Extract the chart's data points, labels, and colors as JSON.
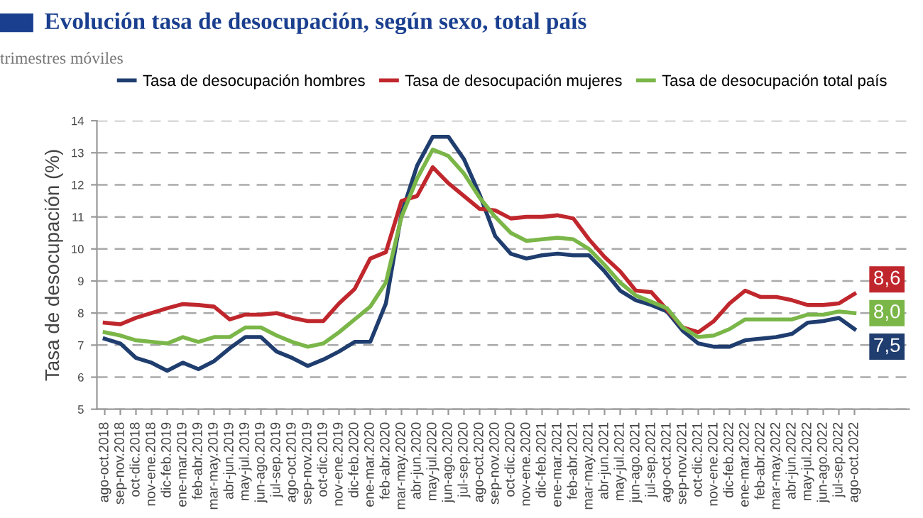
{
  "chart_data": {
    "type": "line",
    "title": "Evolución tasa de desocupación, según sexo, total país",
    "subtitle": "trimestres móviles",
    "ylabel": "Tasa de desocupación (%)",
    "categories": [
      "ago-oct.2018",
      "sep-nov.2018",
      "oct-dic.2018",
      "nov-ene.2018",
      "dic-feb.2019",
      "ene-mar.2019",
      "feb-abr.2019",
      "mar-may.2019",
      "abr-jun.2019",
      "may-jul.2019",
      "jun-ago.2019",
      "jul-sep.2019",
      "ago-oct.2019",
      "sep-nov.2019",
      "oct-dic.2019",
      "nov-ene.2019",
      "dic-feb.2020",
      "ene-mar.2020",
      "feb-abr.2020",
      "mar-may.2020",
      "abr-jun.2020",
      "may-jul.2020",
      "jun-ago.2020",
      "jul-sep.2020",
      "ago-oct.2020",
      "sep-nov.2020",
      "oct-dic.2020",
      "nov-ene.2020",
      "dic-feb.2021",
      "ene-mar.2021",
      "feb-abr.2021",
      "mar-may.2021",
      "abr-jun.2021",
      "may-jul.2021",
      "jun-ago.2021",
      "jul-sep.2021",
      "ago-oct.2021",
      "sep-nov.2021",
      "oct-dic.2021",
      "nov-ene.2021",
      "dic-feb.2022",
      "ene-mar.2022",
      "feb-abr.2022",
      "mar-may.2022",
      "abr-jun.2022",
      "may-jul.2022",
      "jun-ago.2022",
      "jul-sep.2022",
      "ago-oct.2022"
    ],
    "series": [
      {
        "name": "Tasa de desocupación hombres",
        "color": "#1f3d6e",
        "values": [
          7.2,
          7.05,
          6.6,
          6.45,
          6.2,
          6.45,
          6.25,
          6.5,
          6.9,
          7.25,
          7.25,
          6.8,
          6.6,
          6.35,
          6.55,
          6.8,
          7.1,
          7.1,
          8.3,
          11.1,
          12.6,
          13.5,
          13.5,
          12.8,
          11.7,
          10.4,
          9.85,
          9.7,
          9.8,
          9.85,
          9.8,
          9.8,
          9.3,
          8.7,
          8.4,
          8.25,
          8.05,
          7.45,
          7.05,
          6.95,
          6.95,
          7.15,
          7.2,
          7.25,
          7.35,
          7.7,
          7.75,
          7.85,
          7.5
        ],
        "value_labels": [
          null,
          null,
          null,
          null,
          null,
          null,
          null,
          null,
          null,
          null,
          null,
          null,
          null,
          null,
          null,
          null,
          null,
          null,
          null,
          null,
          null,
          null,
          null,
          null,
          null,
          null,
          null,
          null,
          null,
          null,
          null,
          null,
          null,
          null,
          null,
          null,
          null,
          null,
          null,
          null,
          null,
          null,
          null,
          null,
          null,
          null,
          null,
          null,
          "7,5"
        ]
      },
      {
        "name": "Tasa de desocupación mujeres",
        "color": "#c0272d",
        "values": [
          7.7,
          7.65,
          7.85,
          8.0,
          8.15,
          8.28,
          8.25,
          8.2,
          7.8,
          7.95,
          7.95,
          8.0,
          7.85,
          7.75,
          7.75,
          8.3,
          8.75,
          9.7,
          9.9,
          11.5,
          11.65,
          12.55,
          12.05,
          11.65,
          11.25,
          11.2,
          10.95,
          11.0,
          11.0,
          11.05,
          10.95,
          10.3,
          9.75,
          9.3,
          8.7,
          8.65,
          8.1,
          7.55,
          7.4,
          7.75,
          8.3,
          8.7,
          8.5,
          8.5,
          8.4,
          8.25,
          8.25,
          8.3,
          8.6
        ],
        "value_labels": [
          null,
          null,
          null,
          null,
          null,
          null,
          null,
          null,
          null,
          null,
          null,
          null,
          null,
          null,
          null,
          null,
          null,
          null,
          null,
          null,
          null,
          null,
          null,
          null,
          null,
          null,
          null,
          null,
          null,
          null,
          null,
          null,
          null,
          null,
          null,
          null,
          null,
          null,
          null,
          null,
          null,
          null,
          null,
          null,
          null,
          null,
          null,
          null,
          "8,6"
        ]
      },
      {
        "name": "Tasa de desocupación total país",
        "color": "#7ab648",
        "values": [
          7.4,
          7.3,
          7.15,
          7.1,
          7.05,
          7.25,
          7.1,
          7.25,
          7.25,
          7.55,
          7.55,
          7.3,
          7.1,
          6.95,
          7.05,
          7.4,
          7.8,
          8.2,
          8.95,
          11.0,
          12.2,
          13.1,
          12.9,
          12.35,
          11.6,
          11.0,
          10.5,
          10.25,
          10.3,
          10.35,
          10.3,
          10.0,
          9.5,
          8.95,
          8.55,
          8.35,
          8.15,
          7.55,
          7.25,
          7.3,
          7.5,
          7.8,
          7.8,
          7.8,
          7.8,
          7.95,
          7.95,
          8.05,
          8.0
        ],
        "value_labels": [
          null,
          null,
          null,
          null,
          null,
          null,
          null,
          null,
          null,
          null,
          null,
          null,
          null,
          null,
          null,
          null,
          null,
          null,
          null,
          null,
          null,
          null,
          null,
          null,
          null,
          null,
          null,
          null,
          null,
          null,
          null,
          null,
          null,
          null,
          null,
          null,
          null,
          null,
          null,
          null,
          null,
          null,
          null,
          null,
          null,
          null,
          null,
          null,
          "8,0"
        ]
      }
    ],
    "ylim": [
      5,
      14
    ],
    "yticks": [
      5,
      6,
      7,
      8,
      9,
      10,
      11,
      12,
      13,
      14
    ],
    "grid": "y",
    "legend": "top",
    "marker": "none",
    "line_style": "solid"
  }
}
